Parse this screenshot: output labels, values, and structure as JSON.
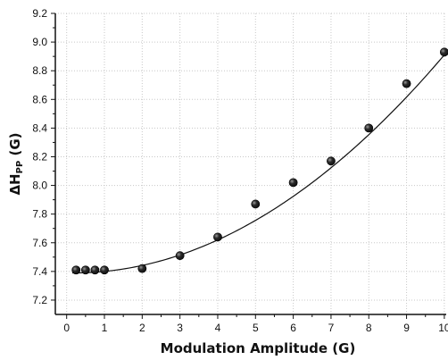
{
  "chart_data": {
    "type": "scatter",
    "xlabel": "Modulation Amplitude (G)",
    "ylabel": {
      "main": "ΔH",
      "sub": "PP",
      "unit": " (G)"
    },
    "xlim": [
      -0.3,
      10.05
    ],
    "ylim": [
      7.1,
      9.2
    ],
    "x_ticks": [
      0,
      1,
      2,
      3,
      4,
      5,
      6,
      7,
      8,
      9,
      10
    ],
    "y_ticks": [
      7.2,
      7.4,
      7.6,
      7.8,
      8.0,
      8.2,
      8.4,
      8.6,
      8.8,
      9.0,
      9.2
    ],
    "x_tick_labels": [
      "0",
      "1",
      "2",
      "3",
      "4",
      "5",
      "6",
      "7",
      "8",
      "9",
      "10"
    ],
    "y_tick_labels": [
      "7.2",
      "7.4",
      "7.6",
      "7.8",
      "8.0",
      "8.2",
      "8.4",
      "8.6",
      "8.8",
      "9.0",
      "9.2"
    ],
    "grid": true,
    "series": [
      {
        "points": [
          {
            "x": 0.25,
            "y": 7.41
          },
          {
            "x": 0.5,
            "y": 7.41
          },
          {
            "x": 0.75,
            "y": 7.41
          },
          {
            "x": 1.0,
            "y": 7.41
          },
          {
            "x": 2.0,
            "y": 7.42
          },
          {
            "x": 3.0,
            "y": 7.51
          },
          {
            "x": 4.0,
            "y": 7.64
          },
          {
            "x": 5.0,
            "y": 7.87
          },
          {
            "x": 6.0,
            "y": 8.02
          },
          {
            "x": 7.0,
            "y": 8.17
          },
          {
            "x": 8.0,
            "y": 8.4
          },
          {
            "x": 9.0,
            "y": 8.71
          },
          {
            "x": 10.0,
            "y": 8.93
          }
        ],
        "marker_color": "#111111"
      }
    ],
    "fit_curve": {
      "type": "quadratic",
      "coefficients": {
        "a": 0.01577,
        "b": -0.00566,
        "c": 7.39
      },
      "x_range": [
        0.15,
        10.05
      ],
      "color": "#111111"
    }
  }
}
